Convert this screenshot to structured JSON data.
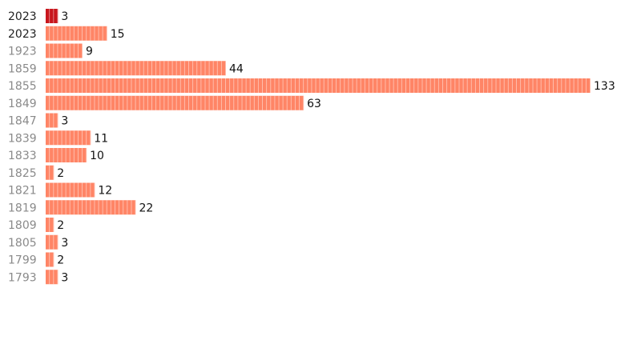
{
  "chart_data": {
    "type": "bar",
    "orientation": "horizontal",
    "categories": [
      "2023",
      "2023",
      "1923",
      "1859",
      "1855",
      "1849",
      "1847",
      "1839",
      "1833",
      "1825",
      "1821",
      "1819",
      "1809",
      "1805",
      "1799",
      "1793"
    ],
    "values": [
      3,
      15,
      9,
      44,
      133,
      63,
      3,
      11,
      10,
      2,
      12,
      22,
      2,
      3,
      2,
      3
    ],
    "colors": [
      "#c8161d",
      "#ff8566",
      "#ff8566",
      "#ff8566",
      "#ff8566",
      "#ff8566",
      "#ff8566",
      "#ff8566",
      "#ff8566",
      "#ff8566",
      "#ff8566",
      "#ff8566",
      "#ff8566",
      "#ff8566",
      "#ff8566",
      "#ff8566"
    ],
    "category_colors": [
      "#222222",
      "#222222",
      "#8a8a8a",
      "#8a8a8a",
      "#8a8a8a",
      "#8a8a8a",
      "#8a8a8a",
      "#8a8a8a",
      "#8a8a8a",
      "#8a8a8a",
      "#8a8a8a",
      "#8a8a8a",
      "#8a8a8a",
      "#8a8a8a",
      "#8a8a8a",
      "#8a8a8a"
    ]
  }
}
